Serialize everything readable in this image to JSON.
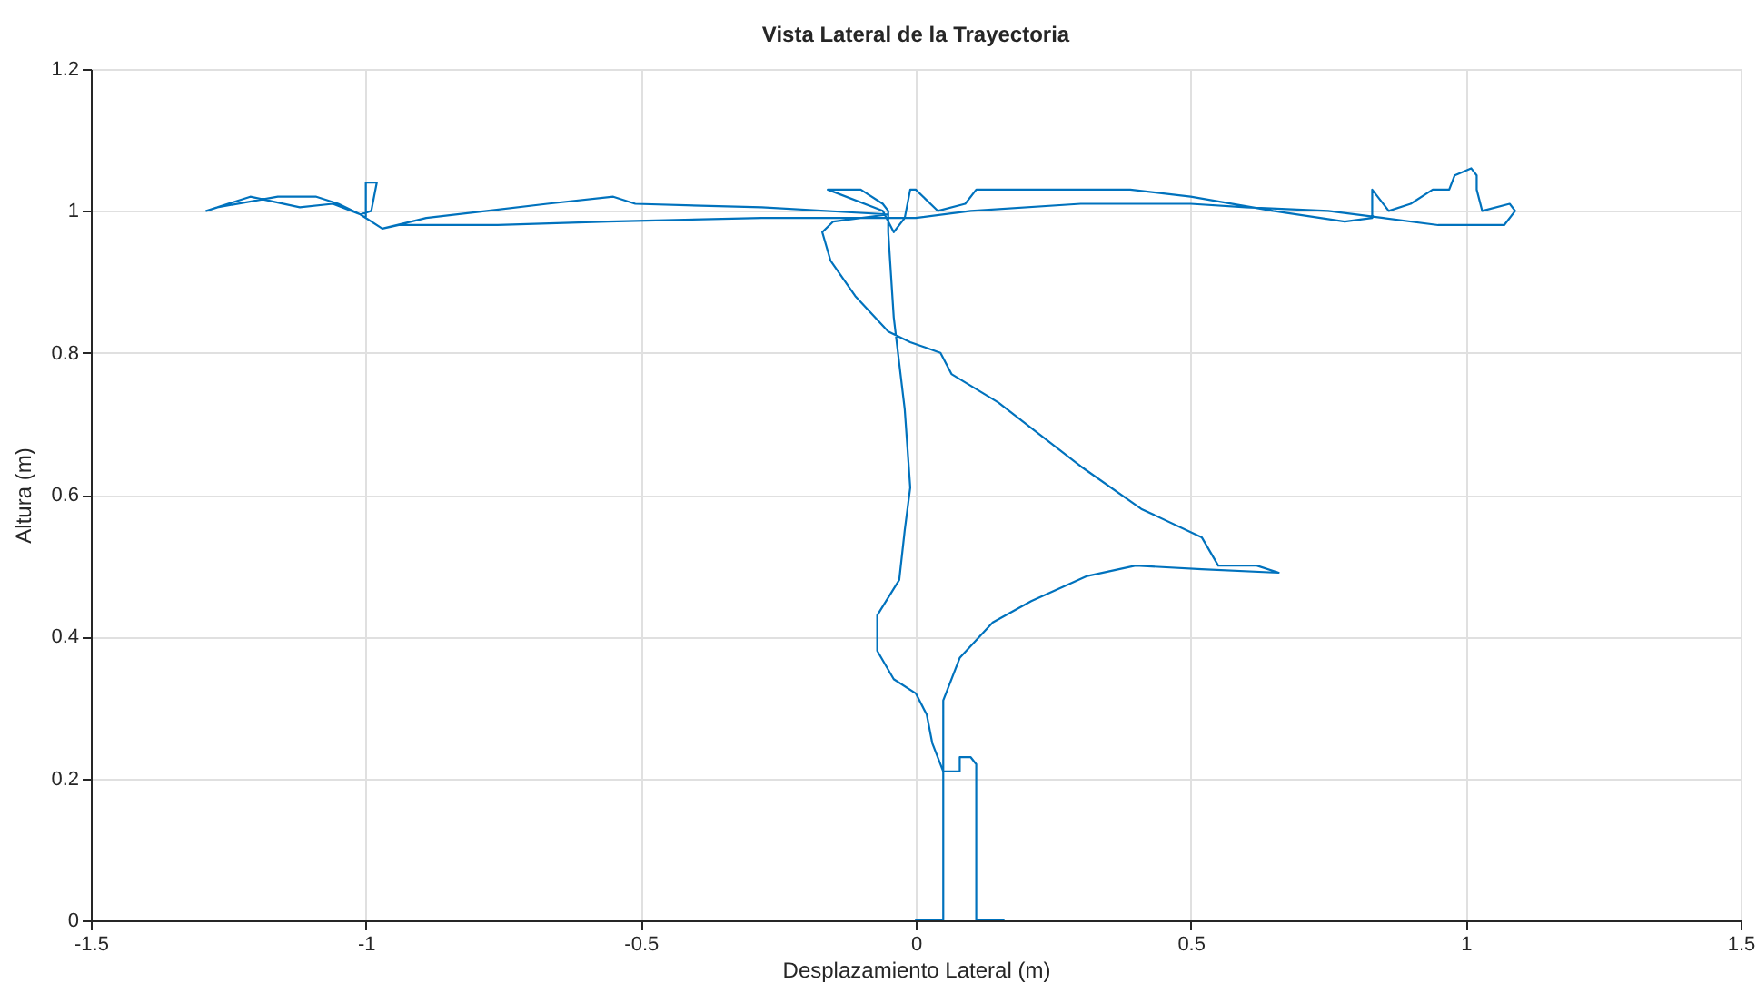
{
  "chart_data": {
    "type": "line",
    "title": "Vista Lateral de la Trayectoria",
    "xlabel": "Desplazamiento Lateral (m)",
    "ylabel": "Altura (m)",
    "xlim": [
      -1.5,
      1.5
    ],
    "xticks": [
      -1.5,
      -1,
      -0.5,
      0,
      0.5,
      1,
      1.5
    ],
    "ylim": [
      0,
      1.2
    ],
    "yticks": [
      0,
      0.2,
      0.4,
      0.6,
      0.8,
      1,
      1.2
    ],
    "grid": true,
    "series": [
      {
        "color": "#0072bd",
        "x": [
          0.16,
          0.11,
          0.11,
          0.1,
          0.08,
          0.08,
          0.05,
          0.03,
          0.02,
          0.0,
          -0.04,
          -0.07,
          -0.07,
          -0.03,
          -0.02,
          -0.01,
          -0.02,
          -0.04,
          -0.05,
          -0.05,
          -0.06,
          -0.1,
          -0.16,
          -0.06,
          -0.04,
          -0.02,
          -0.01,
          0.0,
          0.04,
          0.09,
          0.11,
          0.39,
          0.5,
          0.65,
          0.78,
          0.83,
          0.83,
          0.86,
          0.9,
          0.94,
          0.97,
          0.98,
          1.01,
          1.02,
          1.02,
          1.03,
          1.08,
          1.09,
          1.07,
          0.95,
          0.85,
          0.75,
          0.6,
          0.5,
          0.3,
          0.1,
          0.0,
          -0.28,
          -0.56,
          -0.76,
          -0.94,
          -0.97,
          -1.0,
          -1.0,
          -0.98,
          -0.99,
          -1.01,
          -1.06,
          -1.12,
          -1.21,
          -1.29,
          -1.27,
          -1.16,
          -1.09,
          -1.05,
          -1.01,
          -0.97,
          -0.89,
          -0.78,
          -0.67,
          -0.55,
          -0.51,
          -0.28,
          -0.05,
          -0.15,
          -0.17,
          -0.155,
          -0.11,
          -0.05,
          -0.01,
          0.045,
          0.065,
          0.15,
          0.3,
          0.41,
          0.52,
          0.55,
          0.62,
          0.66,
          0.52,
          0.4,
          0.31,
          0.21,
          0.14,
          0.08,
          0.05,
          0.05,
          0.0
        ],
        "values": [
          0,
          0,
          0.22,
          0.23,
          0.23,
          0.21,
          0.21,
          0.25,
          0.29,
          0.32,
          0.34,
          0.38,
          0.43,
          0.48,
          0.55,
          0.61,
          0.72,
          0.85,
          0.97,
          1.0,
          1.01,
          1.03,
          1.03,
          1.0,
          0.97,
          0.99,
          1.03,
          1.03,
          1.0,
          1.01,
          1.03,
          1.03,
          1.02,
          1.0,
          0.985,
          0.99,
          1.03,
          1.0,
          1.01,
          1.03,
          1.03,
          1.05,
          1.06,
          1.05,
          1.03,
          1.0,
          1.01,
          1.0,
          0.98,
          0.98,
          0.99,
          1.0,
          1.005,
          1.01,
          1.01,
          1.0,
          0.99,
          0.99,
          0.985,
          0.98,
          0.98,
          0.975,
          0.99,
          1.04,
          1.04,
          1.0,
          0.995,
          1.01,
          1.005,
          1.02,
          1.0,
          1.005,
          1.02,
          1.02,
          1.01,
          0.995,
          0.975,
          0.99,
          1.0,
          1.01,
          1.02,
          1.01,
          1.005,
          0.995,
          0.985,
          0.97,
          0.93,
          0.88,
          0.83,
          0.815,
          0.8,
          0.77,
          0.73,
          0.64,
          0.58,
          0.54,
          0.5,
          0.5,
          0.49,
          0.495,
          0.5,
          0.485,
          0.45,
          0.42,
          0.37,
          0.31,
          0,
          0
        ]
      }
    ]
  }
}
